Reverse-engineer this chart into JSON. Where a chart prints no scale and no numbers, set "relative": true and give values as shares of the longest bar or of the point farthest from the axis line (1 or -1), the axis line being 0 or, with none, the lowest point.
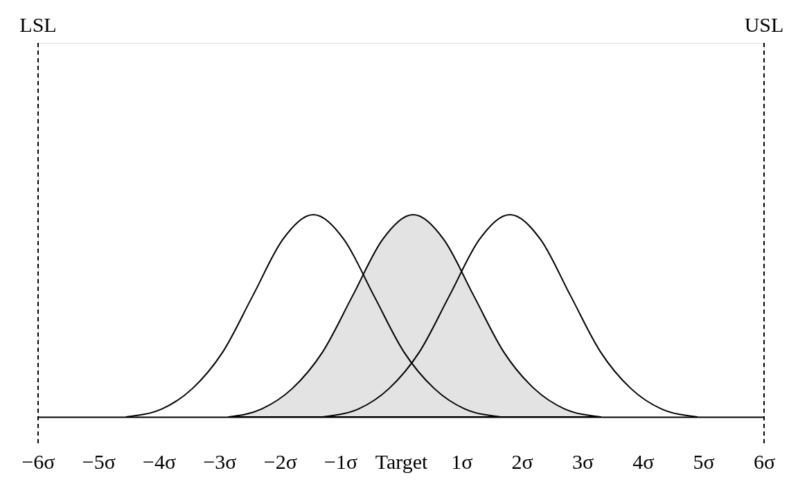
{
  "chart_data": {
    "type": "line",
    "relative": true,
    "xlim": [
      -6,
      6
    ],
    "xticks": [
      {
        "value": -6,
        "label": "−6σ"
      },
      {
        "value": -5,
        "label": "−5σ"
      },
      {
        "value": -4,
        "label": "−4σ"
      },
      {
        "value": -3,
        "label": "−3σ"
      },
      {
        "value": -2,
        "label": "−2σ"
      },
      {
        "value": -1,
        "label": "−1σ"
      },
      {
        "value": 0,
        "label": "Target"
      },
      {
        "value": 1,
        "label": "1σ"
      },
      {
        "value": 2,
        "label": "2σ"
      },
      {
        "value": 3,
        "label": "3σ"
      },
      {
        "value": 4,
        "label": "4σ"
      },
      {
        "value": 5,
        "label": "5σ"
      },
      {
        "value": 6,
        "label": "6σ"
      }
    ],
    "series": [
      {
        "type": "area",
        "color": "#e3e3e3",
        "x": [
          -2.85,
          -2.3,
          -1.8,
          -1.3,
          -0.8,
          -0.3,
          0.2,
          0.7,
          1.2,
          1.7,
          2.2,
          2.7,
          3.3
        ],
        "values": [
          0,
          0.04,
          0.14,
          0.32,
          0.6,
          0.88,
          1,
          0.88,
          0.6,
          0.32,
          0.14,
          0.04,
          0
        ]
      },
      {
        "color": "#000000",
        "x": [
          -4.55,
          -3.95,
          -3.45,
          -2.95,
          -2.45,
          -1.95,
          -1.45,
          -0.95,
          -0.45,
          0.05,
          0.55,
          1.05,
          1.65
        ],
        "values": [
          0,
          0.04,
          0.14,
          0.32,
          0.6,
          0.88,
          1,
          0.88,
          0.6,
          0.32,
          0.14,
          0.04,
          0
        ]
      },
      {
        "color": "#000000",
        "x": [
          -1.3,
          -0.7,
          -0.2,
          0.3,
          0.8,
          1.3,
          1.8,
          2.3,
          2.8,
          3.3,
          3.8,
          4.3,
          4.9
        ],
        "values": [
          0,
          0.04,
          0.14,
          0.32,
          0.6,
          0.88,
          1,
          0.88,
          0.6,
          0.32,
          0.14,
          0.04,
          0
        ]
      }
    ],
    "ref_lines": [
      {
        "axis": "x",
        "value": -6,
        "label": "LSL",
        "line_style": "dashed"
      },
      {
        "axis": "x",
        "value": 6,
        "label": "USL",
        "line_style": "dashed"
      }
    ],
    "grid": false
  }
}
